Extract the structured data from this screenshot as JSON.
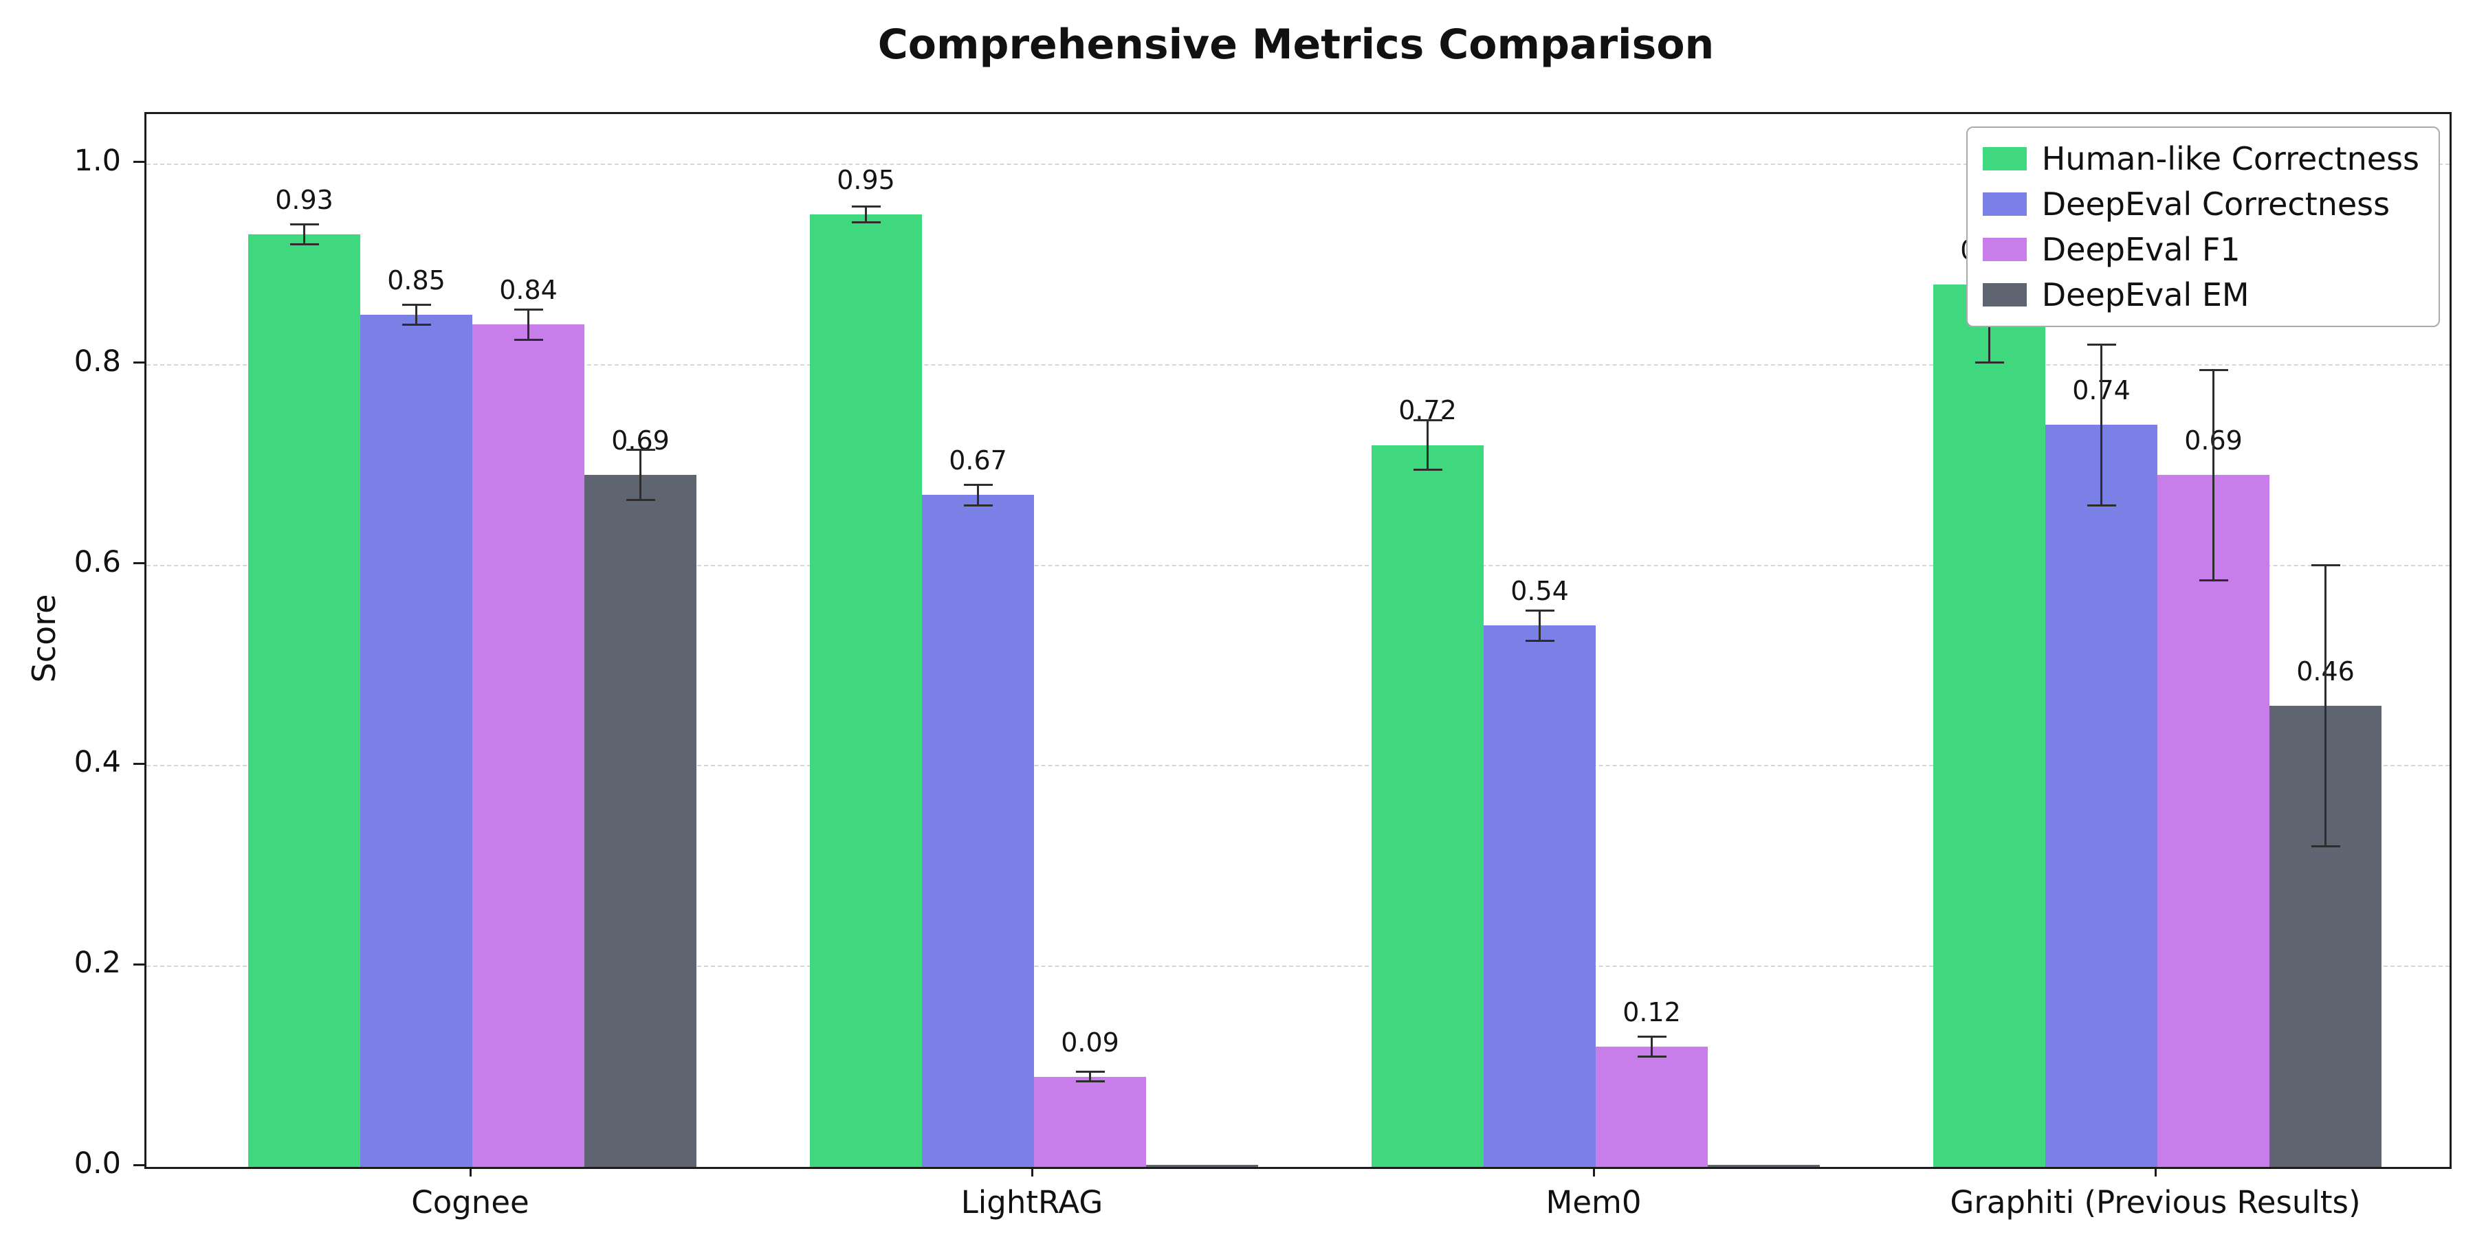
{
  "figure": {
    "background": "#ffffff"
  },
  "chart_data": {
    "type": "bar",
    "title": "Comprehensive Metrics Comparison",
    "xlabel": "",
    "ylabel": "Score",
    "categories": [
      "Cognee",
      "LightRAG",
      "Mem0",
      "Graphiti (Previous Results)"
    ],
    "series": [
      {
        "name": "Human-like Correctness",
        "color": "#3fd87f",
        "values": [
          0.93,
          0.95,
          0.72,
          0.88
        ],
        "errors": [
          0.01,
          0.008,
          0.025,
          0.078
        ]
      },
      {
        "name": "DeepEval Correctness",
        "color": "#7b80e6",
        "values": [
          0.85,
          0.67,
          0.54,
          0.74
        ],
        "errors": [
          0.01,
          0.01,
          0.015,
          0.08
        ]
      },
      {
        "name": "DeepEval F1",
        "color": "#c87eea",
        "values": [
          0.84,
          0.09,
          0.12,
          0.69
        ],
        "errors": [
          0.015,
          0.005,
          0.01,
          0.105
        ]
      },
      {
        "name": "DeepEval EM",
        "color": "#5e6470",
        "values": [
          0.69,
          0.0,
          0.0,
          0.46
        ],
        "errors": [
          0.025,
          0.0,
          0.0,
          0.14
        ]
      }
    ],
    "ylim": [
      0,
      1.05
    ],
    "yticks": [
      0.0,
      0.2,
      0.4,
      0.6,
      0.8,
      1.0
    ],
    "grid": "horizontal-dashed",
    "grid_color": "#d6d6d6",
    "axis_color": "#1b1b1b",
    "error_bar_color": "#2d2d2d",
    "value_label_format": "2-decimals",
    "legend": {
      "position": "upper-right",
      "entries": [
        "Human-like Correctness",
        "DeepEval Correctness",
        "DeepEval F1",
        "DeepEval EM"
      ]
    }
  }
}
